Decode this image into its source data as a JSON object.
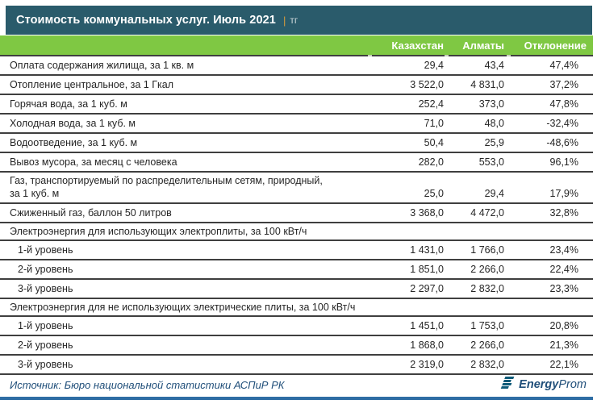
{
  "title": {
    "text": "Стоимость коммунальных услуг. Июль 2021",
    "separator": "|",
    "unit": "тг"
  },
  "colors": {
    "titlebar_teal": "#2a5b6b",
    "header_green": "#7fc843",
    "accent_navy": "#1f4e79",
    "bottom_bar_blue": "#2e6da4",
    "row_line": "#3f3f3f",
    "separator_orange": "#d89b3b"
  },
  "table": {
    "columns": [
      "",
      "Казахстан",
      "Алматы",
      "Отклонение"
    ],
    "rows": [
      {
        "label": "Оплата содержания жилища, за 1 кв. м",
        "kz": "29,4",
        "almaty": "43,4",
        "dev": "47,4%",
        "style": "normal"
      },
      {
        "label": "Отопление центральное, за 1 Гкал",
        "kz": "3 522,0",
        "almaty": "4 831,0",
        "dev": "37,2%",
        "style": "normal"
      },
      {
        "label": "Горячая вода, за 1 куб. м",
        "kz": "252,4",
        "almaty": "373,0",
        "dev": "47,8%",
        "style": "normal"
      },
      {
        "label": "Холодная вода, за 1 куб. м",
        "kz": "71,0",
        "almaty": "48,0",
        "dev": "-32,4%",
        "style": "normal"
      },
      {
        "label": "Водоотведение, за 1 куб. м",
        "kz": "50,4",
        "almaty": "25,9",
        "dev": "-48,6%",
        "style": "normal"
      },
      {
        "label": "Вывоз мусора, за месяц с человека",
        "kz": "282,0",
        "almaty": "553,0",
        "dev": "96,1%",
        "style": "normal"
      },
      {
        "label": "Газ, транспортируемый по распределительным сетям, природный,\nза 1 куб. м",
        "kz": "25,0",
        "almaty": "29,4",
        "dev": "17,9%",
        "style": "wrap"
      },
      {
        "label": "Сжиженный газ, баллон 50 литров",
        "kz": "3 368,0",
        "almaty": "4 472,0",
        "dev": "32,8%",
        "style": "normal"
      },
      {
        "label": "Электроэнергия для использующих электроплиты, за 100 кВт/ч",
        "style": "section"
      },
      {
        "label": "1-й уровень",
        "kz": "1 431,0",
        "almaty": "1 766,0",
        "dev": "23,4%",
        "style": "sub"
      },
      {
        "label": "2-й уровень",
        "kz": "1 851,0",
        "almaty": "2 266,0",
        "dev": "22,4%",
        "style": "sub"
      },
      {
        "label": "3-й уровень",
        "kz": "2 297,0",
        "almaty": "2 832,0",
        "dev": "23,3%",
        "style": "sub"
      },
      {
        "label": "Электроэнергия для не использующих электрические плиты, за 100 кВт/ч",
        "style": "section"
      },
      {
        "label": "1-й уровень",
        "kz": "1 451,0",
        "almaty": "1 753,0",
        "dev": "20,8%",
        "style": "sub"
      },
      {
        "label": "2-й уровень",
        "kz": "1 868,0",
        "almaty": "2 266,0",
        "dev": "21,3%",
        "style": "sub"
      },
      {
        "label": "3-й уровень",
        "kz": "2 319,0",
        "almaty": "2 832,0",
        "dev": "22,1%",
        "style": "sub"
      }
    ]
  },
  "chart_data": {
    "type": "table",
    "title": "Стоимость коммунальных услуг. Июль 2021 | тг",
    "columns": [
      "Казахстан",
      "Алматы",
      "Отклонение %"
    ],
    "rows": [
      {
        "name": "Оплата содержания жилища, за 1 кв. м",
        "kazakhstan": 29.4,
        "almaty": 43.4,
        "deviation_pct": 47.4
      },
      {
        "name": "Отопление центральное, за 1 Гкал",
        "kazakhstan": 3522.0,
        "almaty": 4831.0,
        "deviation_pct": 37.2
      },
      {
        "name": "Горячая вода, за 1 куб. м",
        "kazakhstan": 252.4,
        "almaty": 373.0,
        "deviation_pct": 47.8
      },
      {
        "name": "Холодная вода, за 1 куб. м",
        "kazakhstan": 71.0,
        "almaty": 48.0,
        "deviation_pct": -32.4
      },
      {
        "name": "Водоотведение, за 1 куб. м",
        "kazakhstan": 50.4,
        "almaty": 25.9,
        "deviation_pct": -48.6
      },
      {
        "name": "Вывоз мусора, за месяц с человека",
        "kazakhstan": 282.0,
        "almaty": 553.0,
        "deviation_pct": 96.1
      },
      {
        "name": "Газ, транспортируемый по распределительным сетям, природный, за 1 куб. м",
        "kazakhstan": 25.0,
        "almaty": 29.4,
        "deviation_pct": 17.9
      },
      {
        "name": "Сжиженный газ, баллон 50 литров",
        "kazakhstan": 3368.0,
        "almaty": 4472.0,
        "deviation_pct": 32.8
      },
      {
        "name": "Электроэнергия для использующих электроплиты, за 100 кВт/ч — 1-й уровень",
        "kazakhstan": 1431.0,
        "almaty": 1766.0,
        "deviation_pct": 23.4
      },
      {
        "name": "Электроэнергия для использующих электроплиты, за 100 кВт/ч — 2-й уровень",
        "kazakhstan": 1851.0,
        "almaty": 2266.0,
        "deviation_pct": 22.4
      },
      {
        "name": "Электроэнергия для использующих электроплиты, за 100 кВт/ч — 3-й уровень",
        "kazakhstan": 2297.0,
        "almaty": 2832.0,
        "deviation_pct": 23.3
      },
      {
        "name": "Электроэнергия для не использующих электрические плиты, за 100 кВт/ч — 1-й уровень",
        "kazakhstan": 1451.0,
        "almaty": 1753.0,
        "deviation_pct": 20.8
      },
      {
        "name": "Электроэнергия для не использующих электрические плиты, за 100 кВт/ч — 2-й уровень",
        "kazakhstan": 1868.0,
        "almaty": 2266.0,
        "deviation_pct": 21.3
      },
      {
        "name": "Электроэнергия для не использующих электрические плиты, за 100 кВт/ч — 3-й уровень",
        "kazakhstan": 2319.0,
        "almaty": 2832.0,
        "deviation_pct": 22.1
      }
    ]
  },
  "footer": {
    "source": "Источник: Бюро национальной статистики АСПиР РК",
    "logo": {
      "bold_part": "Energy",
      "regular_part": "Prom"
    }
  }
}
